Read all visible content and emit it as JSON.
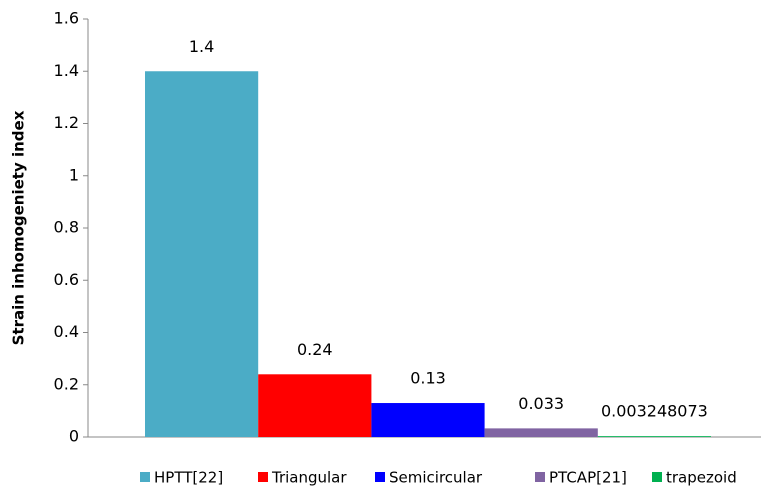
{
  "chart_data": {
    "type": "bar",
    "y_label": "Strain inhomogeniety index",
    "categories": [
      null
    ],
    "series": [
      {
        "name": "HPTT[22]",
        "color": "#4bacc6",
        "values": [
          1.4
        ]
      },
      {
        "name": "Triangular",
        "color": "#ff0000",
        "values": [
          0.24
        ]
      },
      {
        "name": "Semicircular",
        "color": "#0000ff",
        "values": [
          0.13
        ]
      },
      {
        "name": "PTCAP[21]",
        "color": "#8064a2",
        "values": [
          0.033
        ]
      },
      {
        "name": "trapezoid",
        "color": "#00b050",
        "values": [
          0.003248073
        ]
      }
    ],
    "ylim": [
      0,
      1.6
    ],
    "yticks": [
      0,
      0.2,
      0.4,
      0.6,
      0.8,
      1,
      1.2,
      1.4,
      1.6
    ],
    "grid": false,
    "legend": "bottom"
  }
}
